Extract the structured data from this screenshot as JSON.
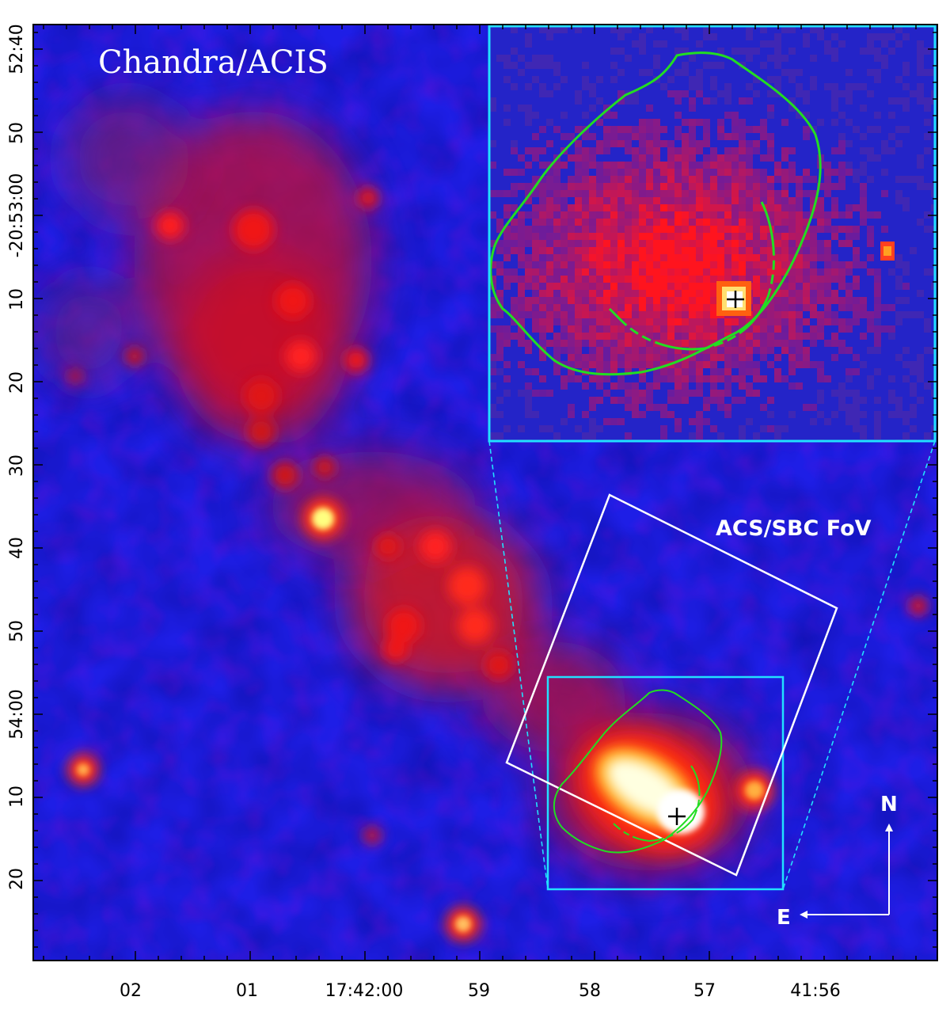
{
  "title_overlay": "Chandra/ACIS",
  "fov_label": "ACS/SBC FoV",
  "compass": {
    "north": "N",
    "east": "E"
  },
  "axes": {
    "y_ticks": [
      "52:40",
      "50",
      "-20:53:00",
      "10",
      "20",
      "30",
      "40",
      "50",
      "54:00",
      "10",
      "20"
    ],
    "x_ticks": [
      "02",
      "01",
      "17:42:00",
      "59",
      "58",
      "57",
      "41:56"
    ]
  },
  "colors": {
    "background_field": "#1f1fe0",
    "emission": "#e81414",
    "bright_source": "#ffffd0",
    "inset_border": "#22e0ff",
    "fov_box": "#ffffff",
    "contour": "#22dd22"
  }
}
